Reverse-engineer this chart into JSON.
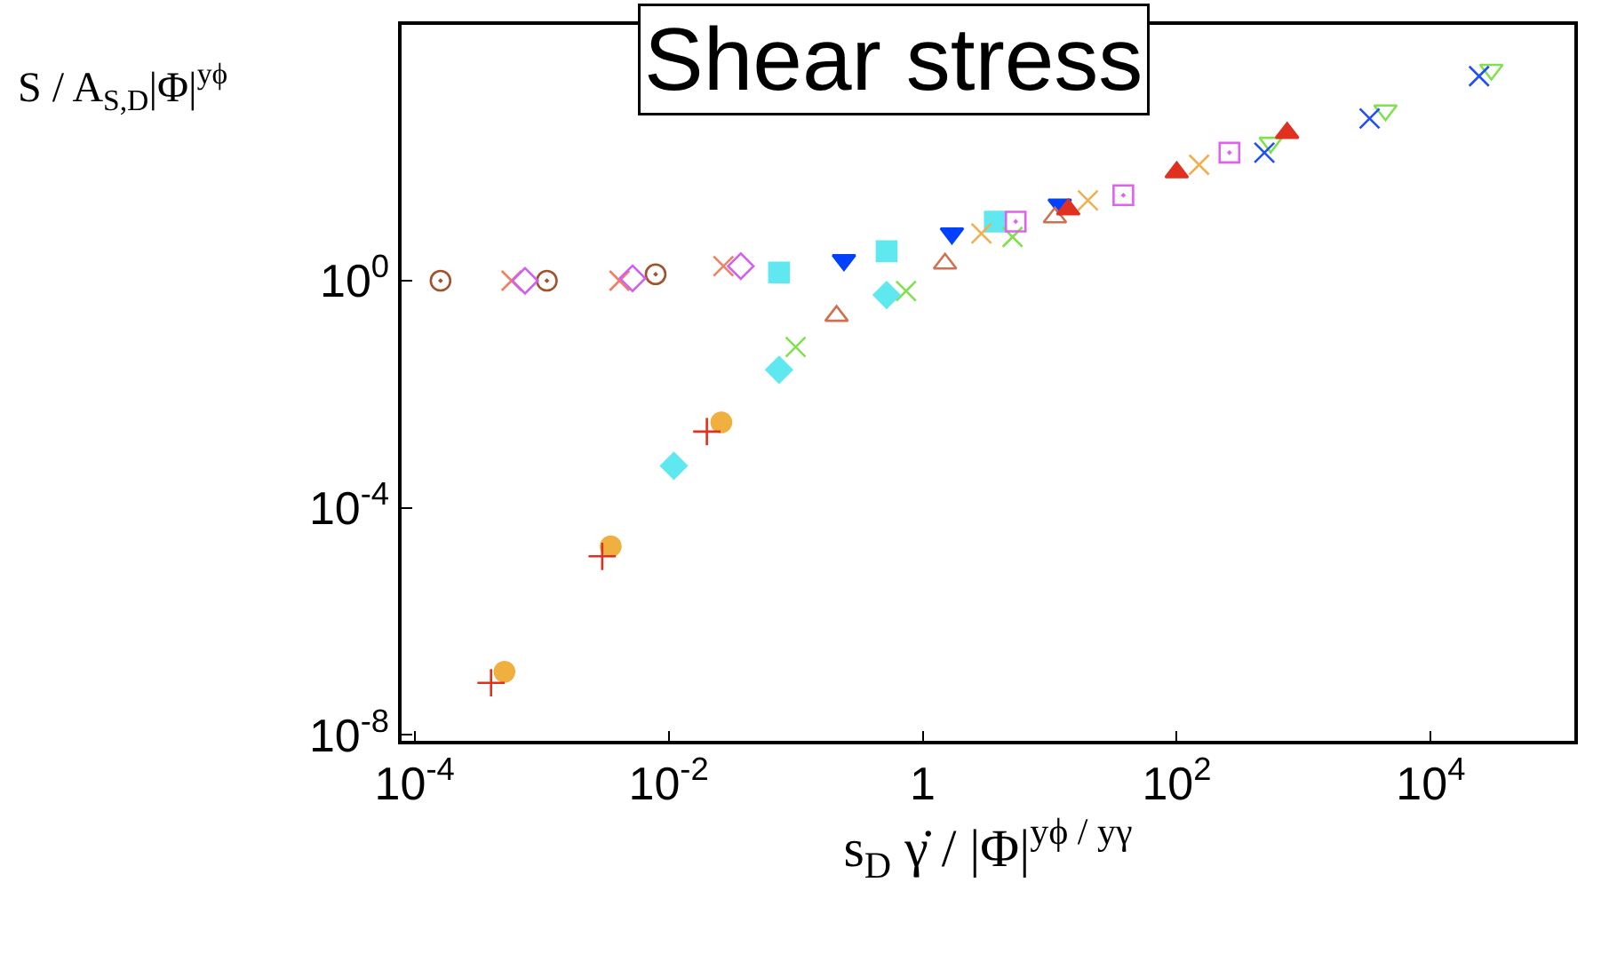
{
  "chart_data": {
    "type": "scatter",
    "title": "Shear stress",
    "xlabel": "s$_{D}$ γ̇ / |Φ|$^{yϕ / yγ}$",
    "ylabel": "S / A$_{S,D}$|Φ|$^{yϕ}$",
    "log": "xy",
    "xlim": [
      7.9e-05,
      135000.0
    ],
    "ylim": [
      7.9e-09,
      32000.0
    ],
    "xticks": [
      {
        "value": 0.0001,
        "label": "10$^{-4}$"
      },
      {
        "value": 0.01,
        "label": "10$^{-2}$"
      },
      1,
      {
        "value": 100,
        "label": "10$^{2}$"
      },
      {
        "value": 10000,
        "label": "10$^{4}$"
      }
    ],
    "yticks": [
      {
        "value": 1e-08,
        "label": "10$^{-8}$"
      },
      {
        "value": 0.0001,
        "label": "10$^{-4}$"
      },
      {
        "value": 1,
        "label": "10$^{0}$"
      }
    ],
    "series": [
      {
        "color": "#a0522d",
        "marker": "circle-open-dot",
        "x": [
          0.00016,
          0.0011,
          0.0079
        ],
        "values": [
          1,
          1,
          1.3
        ]
      },
      {
        "color": "#f08060",
        "marker": "cross",
        "x": [
          0.00058,
          0.0041,
          0.027
        ],
        "values": [
          1,
          1,
          1.8
        ]
      },
      {
        "color": "#d060f0",
        "marker": "diamond-open",
        "x": [
          0.00074,
          0.0052,
          0.037
        ],
        "values": [
          1,
          1.1,
          1.8
        ]
      },
      {
        "color": "#60e8f0",
        "marker": "square",
        "x": [
          0.074,
          0.52,
          3.7
        ],
        "values": [
          1.4,
          3.3,
          11
        ]
      },
      {
        "color": "#0040ff",
        "marker": "triangle-down",
        "x": [
          0.24,
          1.7,
          12
        ],
        "values": [
          2.3,
          6.8,
          22
        ]
      },
      {
        "color": "#d07050",
        "marker": "triangle-up-open",
        "x": [
          0.21,
          1.5,
          11
        ],
        "values": [
          0.24,
          2.0,
          13
        ]
      },
      {
        "color": "#80e050",
        "marker": "cross",
        "x": [
          0.1,
          0.74,
          5.1
        ],
        "values": [
          0.068,
          0.66,
          5.9
        ]
      },
      {
        "color": "#80e050",
        "marker": "triangle-down-open",
        "x": [
          550,
          4400,
          30000
        ],
        "values": [
          270,
          1000,
          5200
        ]
      },
      {
        "color": "#f0b050",
        "marker": "cross",
        "x": [
          2.9,
          20,
          150
        ],
        "values": [
          6.8,
          26,
          110
        ]
      },
      {
        "color": "#e060f0",
        "marker": "square-open-dot",
        "x": [
          5.4,
          38,
          260
        ],
        "values": [
          11,
          32,
          180
        ]
      },
      {
        "color": "#e03020",
        "marker": "triangle-up",
        "x": [
          14,
          100,
          740
        ],
        "values": [
          18,
          81,
          400
        ]
      },
      {
        "color": "#2050f0",
        "marker": "cross",
        "x": [
          490,
          3300,
          24000
        ],
        "values": [
          180,
          720,
          4000
        ]
      },
      {
        "color": "#f0b040",
        "marker": "circle",
        "x": [
          0.00051,
          0.0035,
          0.026
        ],
        "values": [
          1.3e-07,
          2.1e-05,
          0.0032
        ]
      },
      {
        "color": "#e03020",
        "marker": "cross-thin-open",
        "x": [
          0.0004,
          0.003,
          0.02
        ],
        "values": [
          8.3e-08,
          1.4e-05,
          0.0022
        ]
      },
      {
        "color": "#60e8f0",
        "marker": "diamond",
        "x": [
          0.011,
          0.074,
          0.52
        ],
        "values": [
          0.00055,
          0.027,
          0.56
        ]
      }
    ]
  }
}
